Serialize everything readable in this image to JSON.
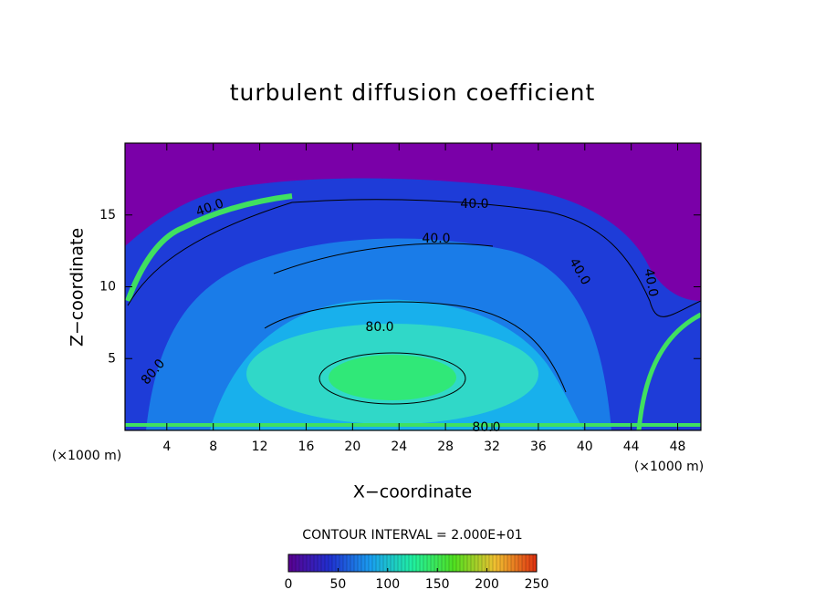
{
  "chart_data": {
    "type": "contour",
    "title": "turbulent diffusion coefficient",
    "xlabel": "X−coordinate",
    "ylabel": "Z−coordinate",
    "x_unit_label": "(×1000 m)",
    "xlim": [
      0.4,
      50
    ],
    "ylim": [
      0,
      20
    ],
    "xticks": [
      4,
      8,
      12,
      16,
      20,
      24,
      28,
      32,
      36,
      40,
      44,
      48
    ],
    "yticks": [
      5,
      10,
      15
    ],
    "contour_interval_label": "CONTOUR INTERVAL = 2.000E+01",
    "contour_labels": [
      "40.0",
      "40.0",
      "40.0",
      "40.0",
      "40.0",
      "80.0",
      "80.0",
      "80.0"
    ],
    "colorbar": {
      "lim": [
        0,
        250
      ],
      "ticks": [
        0,
        50,
        100,
        150,
        200,
        250
      ],
      "colors": [
        "#5a0090",
        "#2030d0",
        "#1aa0f0",
        "#20f0a0",
        "#50e020",
        "#f0c030",
        "#e03010"
      ]
    }
  }
}
